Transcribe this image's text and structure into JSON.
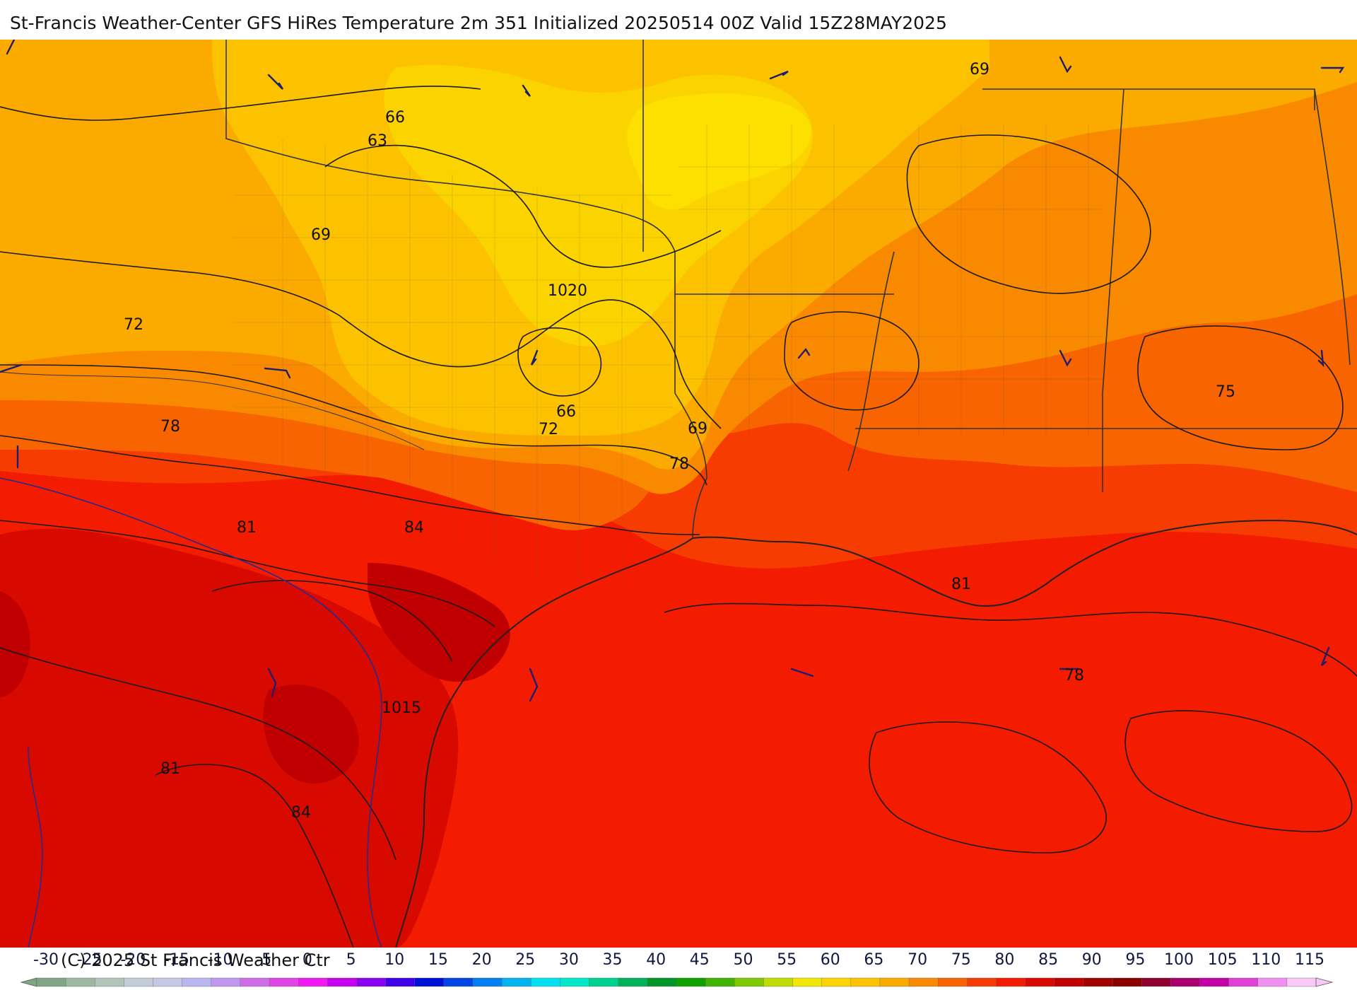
{
  "title": "St-Francis Weather-Center GFS HiRes Temperature 2m  351 Initialized 20250514 00Z Valid 15Z28MAY2025",
  "copyright": "(C) 2025 St Francis Weather Ctr",
  "colors": {
    "band_63": "#fbd400",
    "band_66": "#fcc200",
    "band_69": "#fbaa00",
    "band_72": "#f98a00",
    "band_75": "#f76400",
    "band_78": "#f63c00",
    "band_81": "#f31b00",
    "band_84": "#d80a00",
    "band_87": "#c00000",
    "contour": "#1a1a1a",
    "border": "#333333",
    "wind_barb": "#1e1e6e"
  },
  "isotherm_labels": [
    "66",
    "63",
    "69",
    "72",
    "1020",
    "66",
    "72",
    "69",
    "78",
    "78",
    "81",
    "84",
    "1015",
    "81",
    "84",
    "81",
    "78",
    "69",
    "75"
  ],
  "legend": {
    "ticks": [
      "-30",
      "-25",
      "-20",
      "-15",
      "-10",
      "-5",
      "0",
      "5",
      "10",
      "15",
      "20",
      "25",
      "30",
      "35",
      "40",
      "45",
      "50",
      "55",
      "60",
      "65",
      "70",
      "75",
      "80",
      "85",
      "90",
      "95",
      "100",
      "105",
      "110",
      "115"
    ],
    "colors": [
      "#7fa582",
      "#9cb8a0",
      "#b1c4b9",
      "#c3cbd6",
      "#c4c7e6",
      "#b9b6ef",
      "#c096ee",
      "#cf6de8",
      "#e043e6",
      "#f019f1",
      "#c800f0",
      "#8a00f0",
      "#4000e8",
      "#0010d8",
      "#0046e6",
      "#0080f0",
      "#00b4f0",
      "#00e0f0",
      "#00e8c8",
      "#00d090",
      "#00b25a",
      "#00962c",
      "#10a000",
      "#40b400",
      "#80c800",
      "#c0dc00",
      "#f0e800",
      "#fbd400",
      "#fcc200",
      "#fbaa00",
      "#f98a00",
      "#f76400",
      "#f63c00",
      "#f31b00",
      "#d80a00",
      "#c00000",
      "#a00000",
      "#8a0000",
      "#900030",
      "#a8006c",
      "#c400a8",
      "#e040d8",
      "#f090f0",
      "#f8c8f8"
    ]
  }
}
